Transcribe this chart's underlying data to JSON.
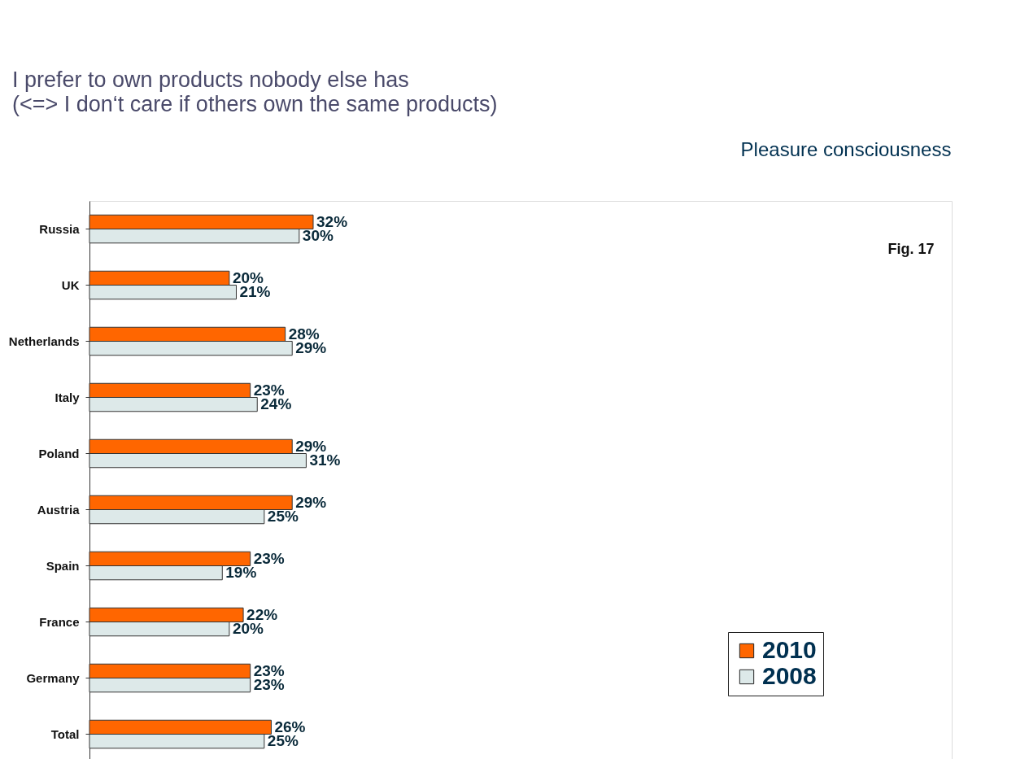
{
  "chart_data": {
    "type": "bar",
    "orientation": "horizontal",
    "title": "I prefer to own products nobody else has",
    "subtitle": "(<=> I don‘t care if others own the same products)",
    "categories": [
      "Russia",
      "UK",
      "Netherlands",
      "Italy",
      "Poland",
      "Austria",
      "Spain",
      "France",
      "Germany",
      "Total"
    ],
    "series": [
      {
        "name": "2010",
        "color": "#ff6600",
        "values": [
          32,
          20,
          28,
          23,
          29,
          29,
          23,
          22,
          23,
          26
        ],
        "value_labels": [
          "32%",
          "20%",
          "28%",
          "23%",
          "29%",
          "29%",
          "23%",
          "22%",
          "23%",
          "26%"
        ]
      },
      {
        "name": "2008",
        "color": "#dde9e9",
        "values": [
          30,
          21,
          29,
          24,
          31,
          25,
          19,
          20,
          23,
          25
        ],
        "value_labels": [
          "30%",
          "21%",
          "29%",
          "24%",
          "31%",
          "25%",
          "19%",
          "20%",
          "23%",
          "25%"
        ]
      }
    ],
    "legend": "bottom right",
    "grid": false,
    "annotations": [
      "Pleasure consciousness",
      "Fig. 17"
    ]
  }
}
